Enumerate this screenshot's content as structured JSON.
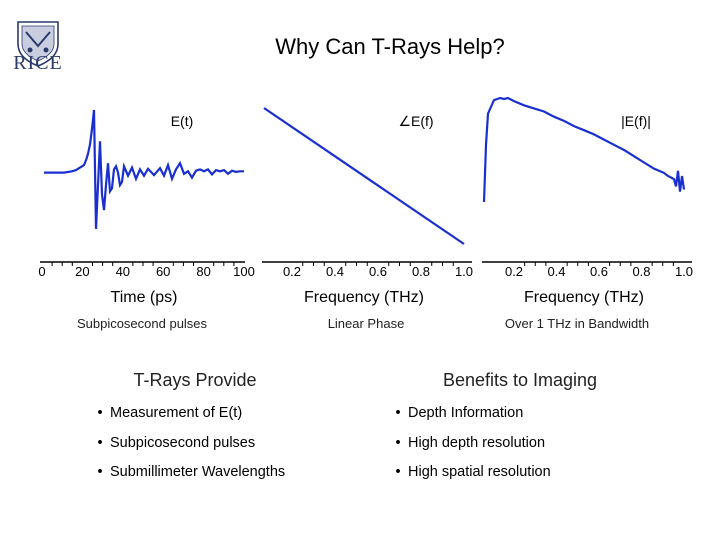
{
  "slide": {
    "title": "Why Can T-Rays Help?",
    "logo_text": "RICE"
  },
  "charts": {
    "time": {
      "label": "E(t)",
      "xlabel": "Time (ps)",
      "ticks": [
        "0",
        "20",
        "40",
        "60",
        "80",
        "100"
      ],
      "caption": "Subpicosecond pulses"
    },
    "phase": {
      "label": "∠E(f)",
      "xlabel": "Frequency (THz)",
      "ticks": [
        "0.2",
        "0.4",
        "0.6",
        "0.8",
        "1.0"
      ],
      "caption": "Linear Phase"
    },
    "magnitude": {
      "label": "|E(f)|",
      "xlabel": "Frequency (THz)",
      "ticks": [
        "0.2",
        "0.4",
        "0.6",
        "0.8",
        "1.0"
      ],
      "caption": "Over 1 THz in Bandwidth"
    }
  },
  "chart_data": [
    {
      "type": "line",
      "title": "E(t)",
      "xlabel": "Time (ps)",
      "ylabel": "",
      "xlim": [
        0,
        100
      ],
      "x": [
        0,
        10,
        14,
        16,
        18,
        20,
        21,
        22,
        23,
        24,
        25,
        26,
        27,
        28,
        29,
        30,
        31,
        32,
        33,
        34,
        35,
        36,
        37,
        38,
        39,
        40,
        42,
        44,
        46,
        48,
        50,
        52,
        55,
        58,
        60,
        62,
        64,
        66,
        68,
        70,
        72,
        74,
        76,
        78,
        80,
        82,
        84,
        86,
        88,
        90,
        92,
        94,
        96,
        98,
        100
      ],
      "y": [
        0,
        0,
        0.02,
        0.04,
        0.08,
        0.12,
        0.2,
        0.3,
        0.45,
        0.7,
        1.0,
        -0.9,
        -0.2,
        0.5,
        -0.35,
        -0.6,
        -0.2,
        0.15,
        -0.3,
        -0.25,
        0.05,
        0.1,
        0,
        -0.2,
        -0.15,
        0.1,
        -0.05,
        0.08,
        -0.1,
        0.05,
        -0.05,
        0.06,
        -0.04,
        0.07,
        -0.05,
        0.12,
        -0.1,
        0.05,
        0.15,
        -0.02,
        0.02,
        -0.08,
        0.03,
        0.05,
        0.02,
        0.05,
        -0.03,
        0.04,
        0.02,
        0.04,
        -0.02,
        0.03,
        0.01,
        0.02,
        0.02
      ]
    },
    {
      "type": "line",
      "title": "∠E(f)",
      "xlabel": "Frequency (THz)",
      "ylabel": "",
      "xlim": [
        0.1,
        1.0
      ],
      "x": [
        0.1,
        1.0
      ],
      "y": [
        1.0,
        0.0
      ]
    },
    {
      "type": "line",
      "title": "|E(f)|",
      "xlabel": "Frequency (THz)",
      "ylabel": "",
      "xlim": [
        0.0,
        1.0
      ],
      "x": [
        0.0,
        0.01,
        0.02,
        0.05,
        0.08,
        0.1,
        0.12,
        0.15,
        0.2,
        0.25,
        0.3,
        0.35,
        0.4,
        0.45,
        0.5,
        0.55,
        0.6,
        0.65,
        0.7,
        0.75,
        0.8,
        0.85,
        0.9,
        0.92,
        0.95,
        0.96,
        0.97,
        0.98,
        0.99,
        1.0
      ],
      "y": [
        0.0,
        0.55,
        0.85,
        0.98,
        1.0,
        0.99,
        1.0,
        0.97,
        0.93,
        0.9,
        0.87,
        0.82,
        0.78,
        0.73,
        0.69,
        0.65,
        0.6,
        0.55,
        0.5,
        0.44,
        0.38,
        0.32,
        0.28,
        0.25,
        0.22,
        0.15,
        0.3,
        0.1,
        0.25,
        0.12
      ]
    }
  ],
  "sections": {
    "left": {
      "heading": "T-Rays Provide",
      "items": [
        "Measurement of E(t)",
        "Subpicosecond pulses",
        "Submillimeter Wavelengths"
      ]
    },
    "right": {
      "heading": "Benefits to Imaging",
      "items": [
        "Depth Information",
        "High depth resolution",
        "High spatial resolution"
      ]
    }
  },
  "colors": {
    "curve": "#1a2fd0",
    "heading": "#222222",
    "logo": "#2b3a6b"
  }
}
